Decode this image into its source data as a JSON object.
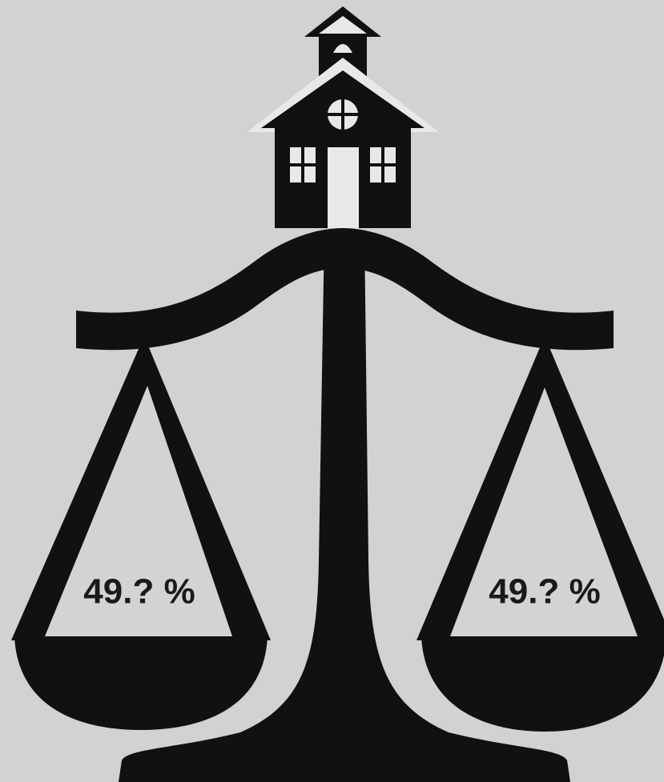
{
  "left_pan": {
    "label": "49.? %"
  },
  "right_pan": {
    "label": "49.? %"
  }
}
